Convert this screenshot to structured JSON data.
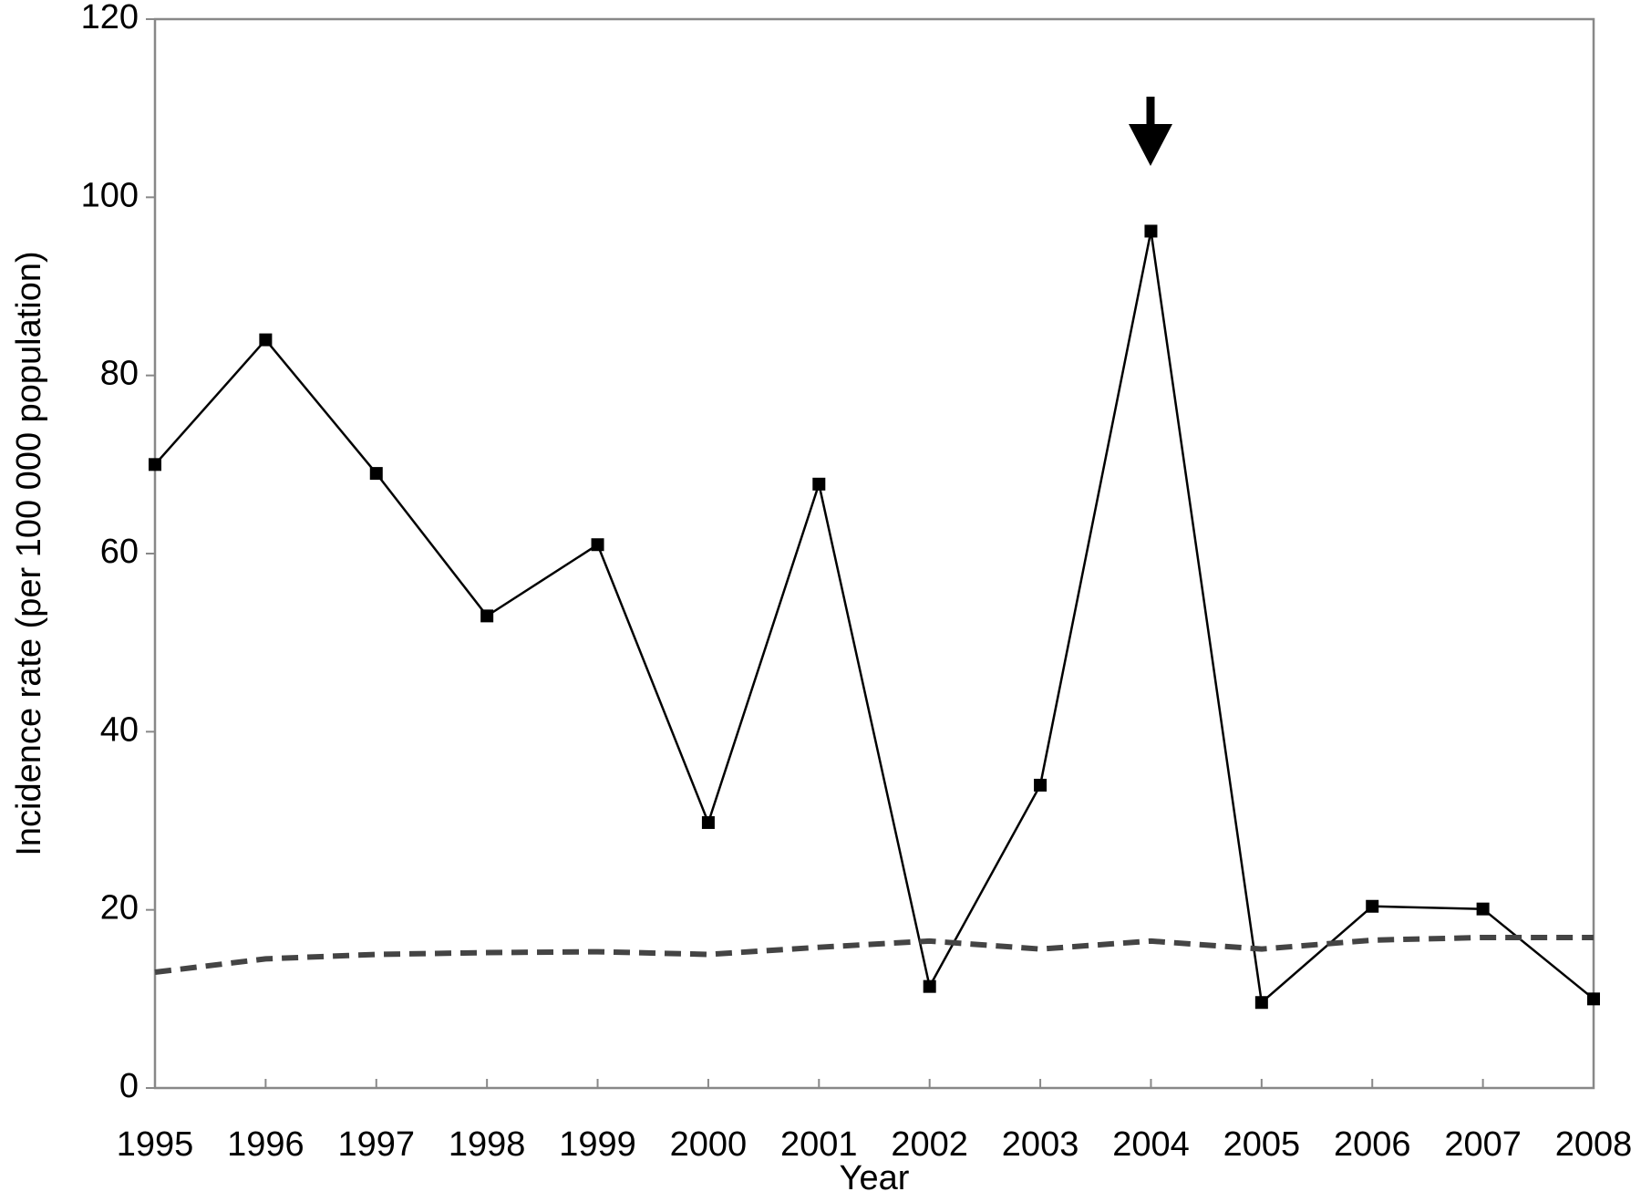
{
  "chart_data": {
    "type": "line",
    "x": [
      1995,
      1996,
      1997,
      1998,
      1999,
      2000,
      2001,
      2002,
      2003,
      2004,
      2005,
      2006,
      2007,
      2008
    ],
    "series": [
      {
        "color": "#000000",
        "style": "solid",
        "markers": true,
        "values": [
          70,
          84,
          69,
          53,
          61,
          29.8,
          67.8,
          11.4,
          34,
          96.2,
          9.6,
          20.4,
          20.1,
          10
        ]
      },
      {
        "color": "#444444",
        "style": "dashed",
        "markers": false,
        "values": [
          13,
          14.5,
          15,
          15.2,
          15.3,
          15,
          15.8,
          16.5,
          15.6,
          16.5,
          15.6,
          16.6,
          16.9,
          16.9
        ]
      }
    ],
    "xlabel": "Year",
    "ylabel": "Incidence rate (per 100 000 population)",
    "xlim": [
      1995,
      2008
    ],
    "xticks": [
      1995,
      1996,
      1997,
      1998,
      1999,
      2000,
      2001,
      2002,
      2003,
      2004,
      2005,
      2006,
      2007,
      2008
    ],
    "ylim": [
      0,
      120
    ],
    "yticks": [
      0,
      20,
      40,
      60,
      80,
      100,
      120
    ],
    "grid": false
  }
}
